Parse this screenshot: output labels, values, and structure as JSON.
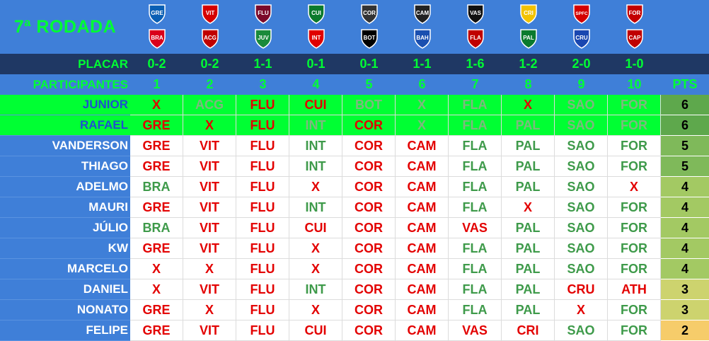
{
  "title": "7ª RODADA",
  "placar_label": "PLACAR",
  "participantes_label": "PARTICIPANTES",
  "pts_label": "PTS",
  "games": [
    {
      "num": "1",
      "score": "0-2",
      "home": "GRE",
      "away": "BRA",
      "home_color": "#0a5fb4",
      "away_color": "#d9001b"
    },
    {
      "num": "2",
      "score": "0-2",
      "home": "VIT",
      "away": "ACG",
      "home_color": "#d40000",
      "away_color": "#c00000"
    },
    {
      "num": "3",
      "score": "1-1",
      "home": "FLU",
      "away": "JUV",
      "home_color": "#7b0a2a",
      "away_color": "#1a8a3a"
    },
    {
      "num": "4",
      "score": "0-1",
      "home": "CUI",
      "away": "INT",
      "home_color": "#0b7a2c",
      "away_color": "#e00000"
    },
    {
      "num": "5",
      "score": "0-1",
      "home": "COR",
      "away": "BOT",
      "home_color": "#333333",
      "away_color": "#000000"
    },
    {
      "num": "6",
      "score": "1-1",
      "home": "CAM",
      "away": "BAH",
      "home_color": "#222222",
      "away_color": "#1a4fb0"
    },
    {
      "num": "7",
      "score": "1-6",
      "home": "VAS",
      "away": "FLA",
      "home_color": "#111111",
      "away_color": "#c00000"
    },
    {
      "num": "8",
      "score": "1-2",
      "home": "CRI",
      "away": "PAL",
      "home_color": "#f2c200",
      "away_color": "#0a7a2e"
    },
    {
      "num": "9",
      "score": "2-0",
      "home": "SPFC",
      "away": "CRU",
      "home_color": "#d40000",
      "away_color": "#1a47b0"
    },
    {
      "num": "10",
      "score": "1-0",
      "home": "FOR",
      "away": "CAP",
      "home_color": "#c40000",
      "away_color": "#c00000"
    }
  ],
  "participants": [
    {
      "name": "JUNIOR",
      "picks": [
        "X",
        "ACG",
        "FLU",
        "CUI",
        "BOT",
        "X",
        "FLA",
        "X",
        "SAO",
        "FOR"
      ],
      "styles": [
        "dimred",
        "dim",
        "dimred",
        "dimred",
        "dim",
        "dim",
        "dim",
        "dimred",
        "dim",
        "dim"
      ],
      "pts": "6",
      "pts_color": "#5ea84c",
      "highlight": true
    },
    {
      "name": "RAFAEL",
      "picks": [
        "GRE",
        "X",
        "FLU",
        "INT",
        "COR",
        "X",
        "FLA",
        "PAL",
        "SAO",
        "FOR"
      ],
      "styles": [
        "dimred",
        "dimred",
        "dimred",
        "dim",
        "dimred",
        "dim",
        "dim",
        "dim",
        "dim",
        "dim"
      ],
      "pts": "6",
      "pts_color": "#5ea84c",
      "highlight": true
    },
    {
      "name": "VANDERSON",
      "picks": [
        "GRE",
        "VIT",
        "FLU",
        "INT",
        "COR",
        "CAM",
        "FLA",
        "PAL",
        "SAO",
        "FOR"
      ],
      "styles": [
        "hit",
        "hit",
        "hit",
        "miss",
        "hit",
        "hit",
        "miss",
        "miss",
        "miss",
        "miss"
      ],
      "pts": "5",
      "pts_color": "#7fb95a"
    },
    {
      "name": "THIAGO",
      "picks": [
        "GRE",
        "VIT",
        "FLU",
        "INT",
        "COR",
        "CAM",
        "FLA",
        "PAL",
        "SAO",
        "FOR"
      ],
      "styles": [
        "hit",
        "hit",
        "hit",
        "miss",
        "hit",
        "hit",
        "miss",
        "miss",
        "miss",
        "miss"
      ],
      "pts": "5",
      "pts_color": "#7fb95a"
    },
    {
      "name": "ADELMO",
      "picks": [
        "BRA",
        "VIT",
        "FLU",
        "X",
        "COR",
        "CAM",
        "FLA",
        "PAL",
        "SAO",
        "X"
      ],
      "styles": [
        "miss",
        "hit",
        "hit",
        "hit",
        "hit",
        "hit",
        "miss",
        "miss",
        "miss",
        "hit"
      ],
      "pts": "4",
      "pts_color": "#a3c963"
    },
    {
      "name": "MAURI",
      "picks": [
        "GRE",
        "VIT",
        "FLU",
        "INT",
        "COR",
        "CAM",
        "FLA",
        "X",
        "SAO",
        "FOR"
      ],
      "styles": [
        "hit",
        "hit",
        "hit",
        "miss",
        "hit",
        "hit",
        "miss",
        "hit",
        "miss",
        "miss"
      ],
      "pts": "4",
      "pts_color": "#a3c963"
    },
    {
      "name": "JÚLIO",
      "picks": [
        "BRA",
        "VIT",
        "FLU",
        "CUI",
        "COR",
        "CAM",
        "VAS",
        "PAL",
        "SAO",
        "FOR"
      ],
      "styles": [
        "miss",
        "hit",
        "hit",
        "hit",
        "hit",
        "hit",
        "hit",
        "miss",
        "miss",
        "miss"
      ],
      "pts": "4",
      "pts_color": "#a3c963"
    },
    {
      "name": "KW",
      "picks": [
        "GRE",
        "VIT",
        "FLU",
        "X",
        "COR",
        "CAM",
        "FLA",
        "PAL",
        "SAO",
        "FOR"
      ],
      "styles": [
        "hit",
        "hit",
        "hit",
        "hit",
        "hit",
        "hit",
        "miss",
        "miss",
        "miss",
        "miss"
      ],
      "pts": "4",
      "pts_color": "#a3c963"
    },
    {
      "name": "MARCELO",
      "picks": [
        "X",
        "X",
        "FLU",
        "X",
        "COR",
        "CAM",
        "FLA",
        "PAL",
        "SAO",
        "FOR"
      ],
      "styles": [
        "hit",
        "hit",
        "hit",
        "hit",
        "hit",
        "hit",
        "miss",
        "miss",
        "miss",
        "miss"
      ],
      "pts": "4",
      "pts_color": "#a3c963"
    },
    {
      "name": "DANIEL",
      "picks": [
        "X",
        "VIT",
        "FLU",
        "INT",
        "COR",
        "CAM",
        "FLA",
        "PAL",
        "CRU",
        "ATH"
      ],
      "styles": [
        "hit",
        "hit",
        "hit",
        "miss",
        "hit",
        "hit",
        "miss",
        "miss",
        "hit",
        "hit"
      ],
      "pts": "3",
      "pts_color": "#cdd36e"
    },
    {
      "name": "NONATO",
      "picks": [
        "GRE",
        "X",
        "FLU",
        "X",
        "COR",
        "CAM",
        "FLA",
        "PAL",
        "X",
        "FOR"
      ],
      "styles": [
        "hit",
        "hit",
        "hit",
        "hit",
        "hit",
        "hit",
        "miss",
        "miss",
        "hit",
        "miss"
      ],
      "pts": "3",
      "pts_color": "#cdd36e"
    },
    {
      "name": "FELIPE",
      "picks": [
        "GRE",
        "VIT",
        "FLU",
        "CUI",
        "COR",
        "CAM",
        "VAS",
        "CRI",
        "SAO",
        "FOR"
      ],
      "styles": [
        "hit",
        "hit",
        "hit",
        "hit",
        "hit",
        "hit",
        "hit",
        "hit",
        "miss",
        "miss"
      ],
      "pts": "2",
      "pts_color": "#f6cc6a"
    }
  ]
}
